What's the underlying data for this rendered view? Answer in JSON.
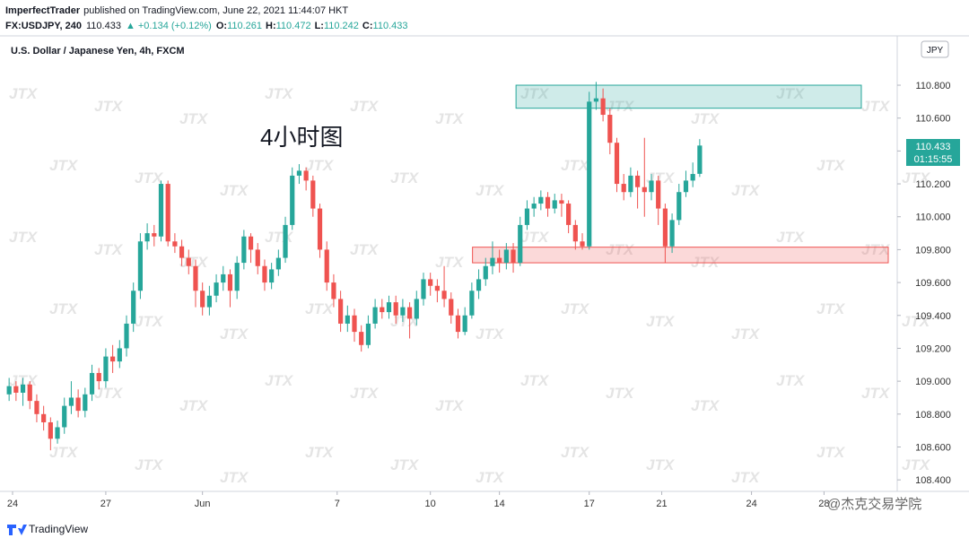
{
  "header": {
    "publisher": "ImperfectTrader",
    "published": "published on TradingView.com, June 22, 2021 11:44:07 HKT",
    "symbol": "FX:USDJPY, 240",
    "change": "▲ +0.134 (+0.12%)",
    "o": "O:",
    "h": "H:",
    "l": "L:",
    "c": "C:"
  },
  "footer": {
    "brand": "TradingView",
    "watermark": "@杰克交易学院"
  },
  "chart_data": {
    "type": "candlestick",
    "title": "U.S. Dollar / Japanese Yen, 4h, FXCM",
    "annotation": "4小时图",
    "currency": "JPY",
    "countdown": "01:15:55",
    "background_mark": "JTX",
    "up_color": "#26a69a",
    "down_color": "#ef5350",
    "xlim": [
      -0.8,
      127.3
    ],
    "xticks": [
      {
        "value": 0.5,
        "label": "24"
      },
      {
        "value": 14,
        "label": "27"
      },
      {
        "value": 28,
        "label": "Jun"
      },
      {
        "value": 47.5,
        "label": "7"
      },
      {
        "value": 61,
        "label": "10"
      },
      {
        "value": 71,
        "label": "14"
      },
      {
        "value": 84,
        "label": "17"
      },
      {
        "value": 94.5,
        "label": "21"
      },
      {
        "value": 107.5,
        "label": "24"
      },
      {
        "value": 118,
        "label": "28"
      }
    ],
    "ylim": [
      108.33,
      111.1
    ],
    "yticks": [
      {
        "value": 108.4,
        "label": "108.400"
      },
      {
        "value": 108.6,
        "label": "108.600"
      },
      {
        "value": 108.8,
        "label": "108.800"
      },
      {
        "value": 109,
        "label": "109.000"
      },
      {
        "value": 109.2,
        "label": "109.200"
      },
      {
        "value": 109.4,
        "label": "109.400"
      },
      {
        "value": 109.6,
        "label": "109.600"
      },
      {
        "value": 109.8,
        "label": "109.800"
      },
      {
        "value": 110,
        "label": "110.000"
      },
      {
        "value": 110.2,
        "label": "110.200"
      },
      {
        "value": 110.4,
        "label": "110.400"
      },
      {
        "value": 110.6,
        "label": "110.600"
      },
      {
        "value": 110.8,
        "label": "110.800"
      }
    ],
    "grid": false,
    "zones": [
      {
        "low": 110.66,
        "high": 110.8,
        "x_start": 73.4,
        "x_end": 123.4,
        "color": "#26a69a"
      },
      {
        "low": 109.72,
        "high": 109.815,
        "x_start": 67.1,
        "x_end": 127.3,
        "color": "#ef5350"
      }
    ],
    "open": [
      108.92,
      108.97,
      108.93,
      108.98,
      108.88,
      108.8,
      108.75,
      108.65,
      108.72,
      108.85,
      108.9,
      108.82,
      108.92,
      109.05,
      109.0,
      109.15,
      109.12,
      109.2,
      109.35,
      109.55,
      109.85,
      109.9,
      109.88,
      110.2,
      109.85,
      109.82,
      109.75,
      109.7,
      109.55,
      109.45,
      109.52,
      109.6,
      109.65,
      109.55,
      109.72,
      109.88,
      109.8,
      109.7,
      109.6,
      109.68,
      109.75,
      109.95,
      110.25,
      110.28,
      110.22,
      110.05,
      109.8,
      109.6,
      109.5,
      109.35,
      109.4,
      109.3,
      109.22,
      109.35,
      109.45,
      109.42,
      109.48,
      109.4,
      109.45,
      109.38,
      109.5,
      109.62,
      109.58,
      109.55,
      109.5,
      109.4,
      109.3,
      109.4,
      109.55,
      109.62,
      109.7,
      109.75,
      109.72,
      109.8,
      109.72,
      109.95,
      110.05,
      110.08,
      110.12,
      110.05,
      110.1,
      110.08,
      109.95,
      109.85,
      109.82,
      110.7,
      110.72,
      110.62,
      110.45,
      110.2,
      110.15,
      110.25,
      110.18,
      110.15,
      110.22,
      110.05,
      109.82,
      109.98,
      110.15,
      110.22,
      110.261
    ],
    "high": [
      109.02,
      109.0,
      109.02,
      109.0,
      108.92,
      108.85,
      108.78,
      108.76,
      108.9,
      109.0,
      108.95,
      108.96,
      109.1,
      109.08,
      109.2,
      109.22,
      109.25,
      109.4,
      109.6,
      109.9,
      109.96,
      109.95,
      110.22,
      110.22,
      109.9,
      109.86,
      109.8,
      109.74,
      109.6,
      109.58,
      109.65,
      109.7,
      109.68,
      109.76,
      109.92,
      109.9,
      109.84,
      109.74,
      109.72,
      109.8,
      110.0,
      110.3,
      110.32,
      110.3,
      110.25,
      110.08,
      109.85,
      109.65,
      109.55,
      109.46,
      109.44,
      109.34,
      109.4,
      109.5,
      109.5,
      109.52,
      109.52,
      109.5,
      109.48,
      109.55,
      109.66,
      109.66,
      109.62,
      109.7,
      109.54,
      109.44,
      109.45,
      109.6,
      109.68,
      109.75,
      109.85,
      109.8,
      109.84,
      109.84,
      110.0,
      110.1,
      110.12,
      110.16,
      110.15,
      110.14,
      110.14,
      110.1,
      109.98,
      109.9,
      110.76,
      110.82,
      110.78,
      110.66,
      110.48,
      110.26,
      110.3,
      110.28,
      110.48,
      110.26,
      110.25,
      110.08,
      110.02,
      110.2,
      110.28,
      110.33,
      110.472
    ],
    "low": [
      108.88,
      108.88,
      108.85,
      108.83,
      108.75,
      108.7,
      108.58,
      108.62,
      108.68,
      108.8,
      108.78,
      108.78,
      108.88,
      108.95,
      108.96,
      109.05,
      109.08,
      109.15,
      109.3,
      109.5,
      109.8,
      109.82,
      109.85,
      109.82,
      109.78,
      109.7,
      109.65,
      109.45,
      109.4,
      109.4,
      109.48,
      109.55,
      109.45,
      109.5,
      109.68,
      109.72,
      109.65,
      109.55,
      109.56,
      109.64,
      109.72,
      109.92,
      110.2,
      110.16,
      110.0,
      109.75,
      109.55,
      109.45,
      109.3,
      109.3,
      109.24,
      109.18,
      109.2,
      109.32,
      109.38,
      109.38,
      109.35,
      109.36,
      109.26,
      109.34,
      109.46,
      109.52,
      109.48,
      109.45,
      109.35,
      109.26,
      109.28,
      109.38,
      109.5,
      109.58,
      109.65,
      109.66,
      109.68,
      109.66,
      109.7,
      109.92,
      110.0,
      110.04,
      110.0,
      110.02,
      110.0,
      109.9,
      109.8,
      109.8,
      109.8,
      110.65,
      110.58,
      110.38,
      110.15,
      110.1,
      110.12,
      110.05,
      110.0,
      110.1,
      109.95,
      109.72,
      109.78,
      109.95,
      110.12,
      110.18,
      110.242
    ],
    "close": [
      108.97,
      108.93,
      108.98,
      108.88,
      108.8,
      108.75,
      108.65,
      108.72,
      108.85,
      108.9,
      108.82,
      108.92,
      109.05,
      109.0,
      109.15,
      109.12,
      109.2,
      109.35,
      109.55,
      109.85,
      109.9,
      109.88,
      110.2,
      109.85,
      109.82,
      109.75,
      109.7,
      109.55,
      109.45,
      109.52,
      109.6,
      109.65,
      109.55,
      109.72,
      109.88,
      109.8,
      109.7,
      109.6,
      109.68,
      109.75,
      109.95,
      110.25,
      110.28,
      110.22,
      110.05,
      109.8,
      109.6,
      109.5,
      109.35,
      109.4,
      109.3,
      109.22,
      109.35,
      109.45,
      109.42,
      109.48,
      109.4,
      109.45,
      109.38,
      109.5,
      109.62,
      109.58,
      109.55,
      109.5,
      109.4,
      109.3,
      109.4,
      109.55,
      109.62,
      109.7,
      109.75,
      109.72,
      109.8,
      109.72,
      109.95,
      110.05,
      110.08,
      110.12,
      110.05,
      110.1,
      110.08,
      109.95,
      109.85,
      109.82,
      110.7,
      110.72,
      110.62,
      110.45,
      110.2,
      110.15,
      110.25,
      110.18,
      110.15,
      110.22,
      110.05,
      109.82,
      109.98,
      110.15,
      110.22,
      110.26,
      110.433
    ]
  }
}
